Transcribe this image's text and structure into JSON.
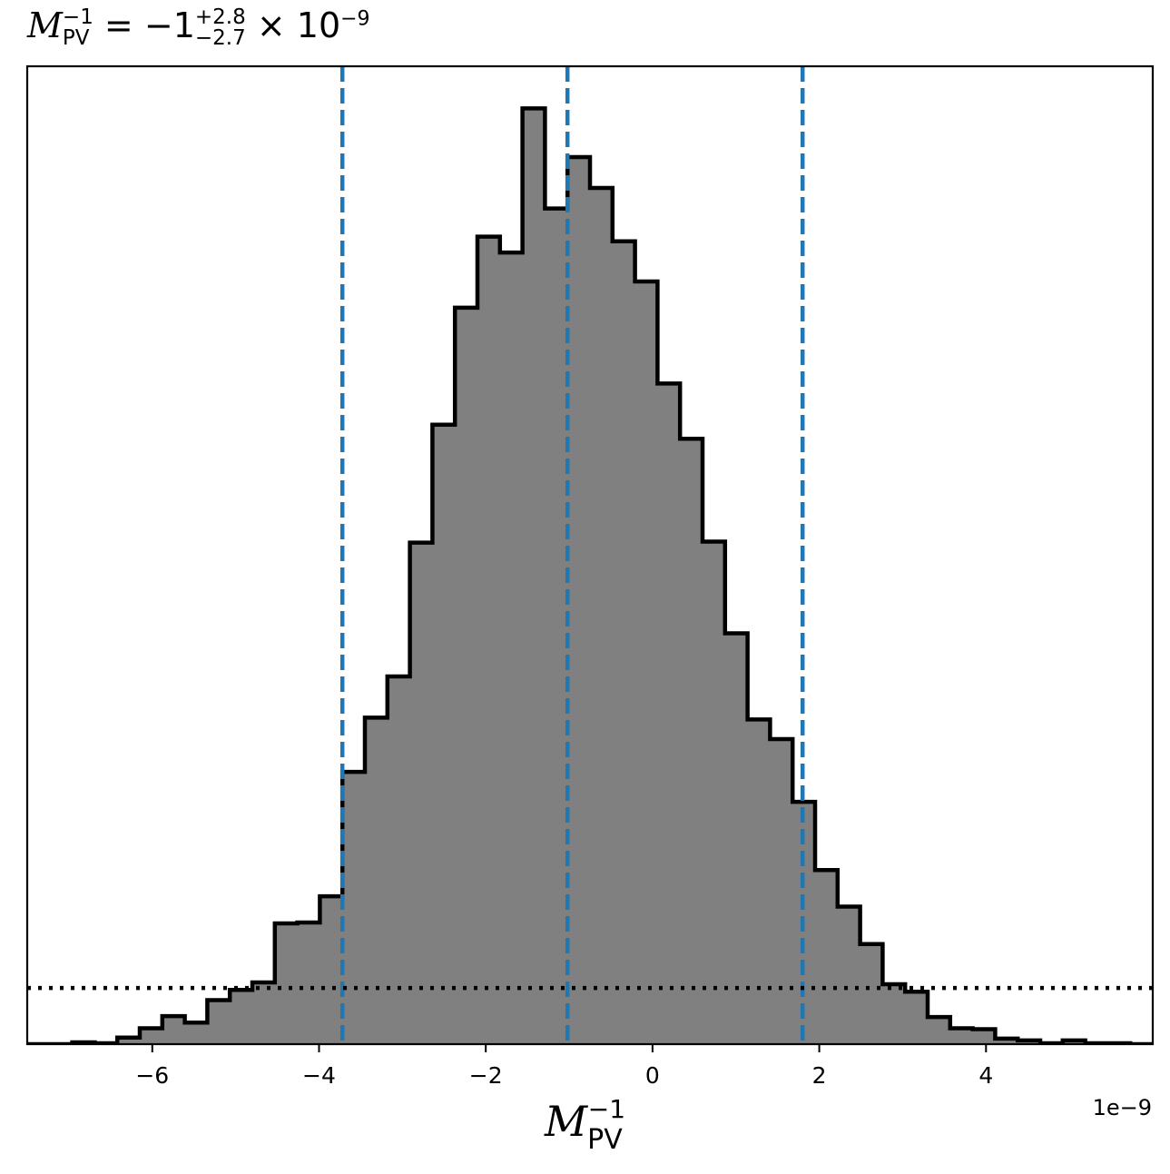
{
  "chart_data": {
    "type": "histogram",
    "title": {
      "symbol": "M",
      "symbol_sup": "−1",
      "symbol_sub": "PV",
      "equals": "=",
      "value": "−1",
      "plus_err": "+2.8",
      "minus_err": "−2.7",
      "times": "× 10",
      "exponent": "−9"
    },
    "xlabel": {
      "symbol": "M",
      "sup": "−1",
      "sub": "PV"
    },
    "x_offset_label": "1e−9",
    "xlim": [
      -7.5,
      6.0
    ],
    "ylim": [
      0,
      1.045
    ],
    "x_ticks": [
      -6,
      -4,
      -2,
      0,
      2,
      4
    ],
    "x_tick_labels": [
      "−6",
      "−4",
      "−2",
      "0",
      "2",
      "4"
    ],
    "y_ticks_visible": false,
    "bin_edges": [
      -7.5,
      -7.23,
      -6.96,
      -6.69,
      -6.42,
      -6.15,
      -5.88,
      -5.61,
      -5.34,
      -5.07,
      -4.8,
      -4.53,
      -4.26,
      -3.99,
      -3.72,
      -3.45,
      -3.18,
      -2.91,
      -2.64,
      -2.37,
      -2.1,
      -1.83,
      -1.56,
      -1.29,
      -1.02,
      -0.75,
      -0.48,
      -0.21,
      0.06,
      0.33,
      0.6,
      0.87,
      1.14,
      1.41,
      1.68,
      1.95,
      2.22,
      2.49,
      2.76,
      3.03,
      3.3,
      3.57,
      3.84,
      4.11,
      4.38,
      4.65,
      4.92,
      5.19,
      5.46,
      5.73,
      6.0
    ],
    "counts": [
      0.0,
      0.0,
      0.002,
      0.001,
      0.007,
      0.017,
      0.03,
      0.023,
      0.047,
      0.058,
      0.066,
      0.129,
      0.13,
      0.158,
      0.291,
      0.349,
      0.393,
      0.536,
      0.662,
      0.787,
      0.863,
      0.846,
      1.0,
      0.893,
      0.948,
      0.915,
      0.858,
      0.815,
      0.706,
      0.647,
      0.537,
      0.439,
      0.347,
      0.326,
      0.259,
      0.186,
      0.147,
      0.107,
      0.064,
      0.056,
      0.029,
      0.017,
      0.016,
      0.006,
      0.004,
      0.001,
      0.004,
      0.001,
      0.001,
      0.0
    ],
    "vlines": [
      -3.72,
      -1.02,
      1.8
    ],
    "vline_color": "#1f77b4",
    "hline": 0.06,
    "hline_style": "dotted",
    "fill_color": "#808080",
    "edge_color": "#000000"
  }
}
